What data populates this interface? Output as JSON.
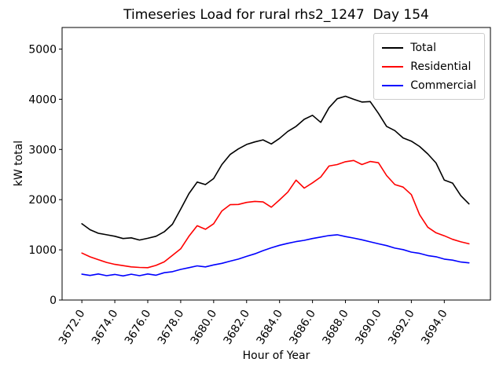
{
  "figure": {
    "title": "Timeseries Load for rural rhs2_1247  Day 154",
    "xlabel": "Hour of Year",
    "ylabel": "kW total"
  },
  "chart_data": {
    "type": "line",
    "title": "Timeseries Load for rural rhs2_1247  Day 154",
    "xlabel": "Hour of Year",
    "ylabel": "kW total",
    "grid": false,
    "legend_position": "upper right",
    "xlim": [
      3670.8,
      3696.8
    ],
    "ylim": [
      0,
      5430
    ],
    "x_ticks": [
      3672,
      3674,
      3676,
      3678,
      3680,
      3682,
      3684,
      3686,
      3688,
      3690,
      3692,
      3694
    ],
    "x_tick_labels": [
      "3672.0",
      "3674.0",
      "3676.0",
      "3678.0",
      "3680.0",
      "3682.0",
      "3684.0",
      "3686.0",
      "3688.0",
      "3690.0",
      "3692.0",
      "3694.0"
    ],
    "y_ticks": [
      0,
      1000,
      2000,
      3000,
      4000,
      5000
    ],
    "y_tick_labels": [
      "0",
      "1000",
      "2000",
      "3000",
      "4000",
      "5000"
    ],
    "x": [
      3672.0,
      3672.5,
      3673.0,
      3673.5,
      3674.0,
      3674.5,
      3675.0,
      3675.5,
      3676.0,
      3676.5,
      3677.0,
      3677.5,
      3678.0,
      3678.5,
      3679.0,
      3679.5,
      3680.0,
      3680.5,
      3681.0,
      3681.5,
      3682.0,
      3682.5,
      3683.0,
      3683.5,
      3684.0,
      3684.5,
      3685.0,
      3685.5,
      3686.0,
      3686.5,
      3687.0,
      3687.5,
      3688.0,
      3688.5,
      3689.0,
      3689.5,
      3690.0,
      3690.5,
      3691.0,
      3691.5,
      3692.0,
      3692.5,
      3693.0,
      3693.5,
      3694.0,
      3694.5,
      3695.0,
      3695.5
    ],
    "series": [
      {
        "name": "Total",
        "color": "#000000",
        "values": [
          1520,
          1400,
          1330,
          1300,
          1270,
          1225,
          1240,
          1195,
          1230,
          1270,
          1360,
          1510,
          1810,
          2120,
          2350,
          2300,
          2420,
          2700,
          2900,
          3010,
          3100,
          3150,
          3190,
          3110,
          3220,
          3360,
          3460,
          3600,
          3680,
          3540,
          3830,
          4010,
          4060,
          4000,
          3945,
          3955,
          3720,
          3460,
          3375,
          3230,
          3165,
          3060,
          2910,
          2730,
          2390,
          2330,
          2080,
          1915
        ]
      },
      {
        "name": "Residential",
        "color": "#ff0000",
        "values": [
          935,
          860,
          805,
          750,
          710,
          685,
          660,
          650,
          645,
          690,
          760,
          890,
          1020,
          1270,
          1480,
          1410,
          1520,
          1775,
          1900,
          1905,
          1945,
          1965,
          1955,
          1850,
          1995,
          2150,
          2390,
          2230,
          2335,
          2450,
          2670,
          2700,
          2755,
          2780,
          2700,
          2760,
          2735,
          2480,
          2300,
          2250,
          2100,
          1700,
          1450,
          1340,
          1280,
          1210,
          1160,
          1120
        ]
      },
      {
        "name": "Commercial",
        "color": "#0000ff",
        "values": [
          515,
          490,
          520,
          485,
          510,
          480,
          515,
          485,
          520,
          495,
          545,
          565,
          610,
          645,
          680,
          660,
          700,
          730,
          775,
          815,
          870,
          920,
          985,
          1040,
          1090,
          1130,
          1165,
          1190,
          1225,
          1255,
          1285,
          1300,
          1265,
          1235,
          1200,
          1160,
          1120,
          1085,
          1035,
          1005,
          955,
          930,
          885,
          862,
          815,
          795,
          758,
          740
        ]
      }
    ]
  }
}
